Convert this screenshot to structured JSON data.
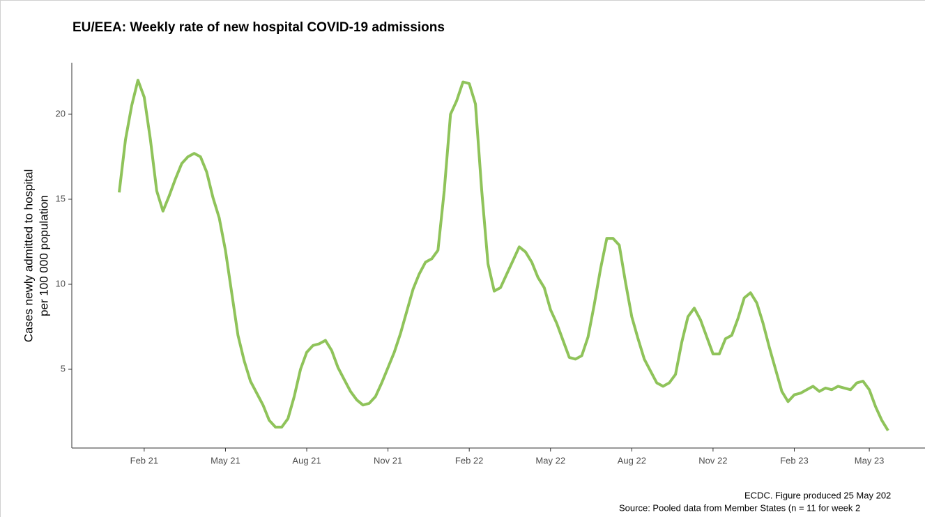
{
  "chart_data": {
    "type": "line",
    "title": "EU/EEA: Weekly rate of new hospital COVID-19 admissions",
    "y_label": [
      "Cases newly admitted to hospital",
      "per 100 000 population"
    ],
    "caption": [
      "ECDC. Figure produced 25 May 202",
      "Source: Pooled data from Member States (n = 11 for week 2"
    ],
    "categories": [
      null,
      null,
      null,
      null,
      "Feb 21",
      null,
      null,
      null,
      null,
      null,
      null,
      null,
      null,
      null,
      null,
      null,
      null,
      "May 21",
      null,
      null,
      null,
      null,
      null,
      null,
      null,
      null,
      null,
      null,
      null,
      null,
      "Aug 21",
      null,
      null,
      null,
      null,
      null,
      null,
      null,
      null,
      null,
      null,
      null,
      null,
      "Nov 21",
      null,
      null,
      null,
      null,
      null,
      null,
      null,
      null,
      null,
      null,
      null,
      null,
      "Feb 22",
      null,
      null,
      null,
      null,
      null,
      null,
      null,
      null,
      null,
      null,
      null,
      null,
      "May 22",
      null,
      null,
      null,
      null,
      null,
      null,
      null,
      null,
      null,
      null,
      null,
      null,
      "Aug 22",
      null,
      null,
      null,
      null,
      null,
      null,
      null,
      null,
      null,
      null,
      null,
      null,
      "Nov 22",
      null,
      null,
      null,
      null,
      null,
      null,
      null,
      null,
      null,
      null,
      null,
      null,
      "Feb 23",
      null,
      null,
      null,
      null,
      null,
      null,
      null,
      null,
      null,
      null,
      null,
      "May 23",
      null,
      null,
      null
    ],
    "series": [
      {
        "name": "Weekly rate",
        "color": "#8fc35a",
        "values": [
          15.4,
          18.5,
          20.5,
          22.0,
          21.0,
          18.5,
          15.5,
          14.3,
          15.2,
          16.2,
          17.1,
          17.5,
          17.7,
          17.5,
          16.6,
          15.1,
          13.9,
          12.0,
          9.5,
          7.0,
          5.5,
          4.3,
          3.6,
          2.9,
          2.0,
          1.6,
          1.6,
          2.1,
          3.4,
          5.0,
          6.0,
          6.4,
          6.5,
          6.7,
          6.1,
          5.1,
          4.4,
          3.7,
          3.2,
          2.9,
          3.0,
          3.4,
          4.2,
          5.1,
          6.0,
          7.1,
          8.4,
          9.7,
          10.6,
          11.3,
          11.5,
          12.0,
          15.5,
          20.0,
          20.8,
          21.9,
          21.8,
          20.6,
          15.5,
          11.2,
          9.6,
          9.8,
          10.6,
          11.4,
          12.2,
          11.9,
          11.3,
          10.4,
          9.8,
          8.5,
          7.7,
          6.7,
          5.7,
          5.6,
          5.8,
          6.9,
          8.8,
          10.9,
          12.7,
          12.7,
          12.3,
          10.1,
          8.1,
          6.8,
          5.6,
          4.9,
          4.2,
          4.0,
          4.2,
          4.7,
          6.6,
          8.1,
          8.6,
          7.9,
          6.9,
          5.9,
          5.9,
          6.8,
          7.0,
          8.0,
          9.2,
          9.5,
          8.9,
          7.7,
          6.3,
          5.0,
          3.7,
          3.1,
          3.5,
          3.6,
          3.8,
          4.0,
          3.7,
          3.9,
          3.8,
          4.0,
          3.9,
          3.8,
          4.2,
          4.3,
          3.8,
          2.8,
          2.0,
          1.4
        ]
      }
    ],
    "ylim": [
      0.37,
      23.03
    ],
    "yticks": [
      5,
      10,
      15,
      20
    ],
    "grid": false
  }
}
